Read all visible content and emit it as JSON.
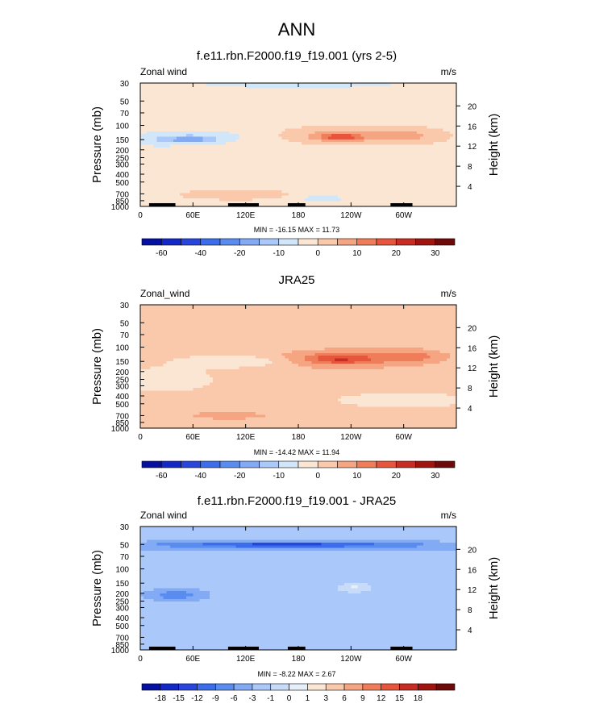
{
  "figure": {
    "title": "ANN"
  },
  "palettes": {
    "main": [
      "#050fa0",
      "#1428c8",
      "#2846dc",
      "#3c6eeb",
      "#5a8cf0",
      "#82aaf5",
      "#aac8fa",
      "#d2e6fa",
      "#fbe6d4",
      "#fac8aa",
      "#f5a582",
      "#f07d5a",
      "#e6553c",
      "#c82d23",
      "#a0140f",
      "#6e0a0a"
    ],
    "diff": [
      "#050fa0",
      "#1428c8",
      "#2846dc",
      "#3c6eeb",
      "#5a8cf0",
      "#82aaf5",
      "#aac8fa",
      "#c8dcfa",
      "#e6f0fa",
      "#fbe6d4",
      "#fac8aa",
      "#f5a582",
      "#f07d5a",
      "#e6553c",
      "#c82d23",
      "#a0140f",
      "#6e0a0a"
    ]
  },
  "chart_data": [
    {
      "type": "heatmap",
      "panel_title": "f.e11.rbn.F2000.f19_f19.001 (yrs 2-5)",
      "left_label": "Zonal wind",
      "right_label": "m/s",
      "ylabel": "Pressure (mb)",
      "ylabel_right": "Height (km)",
      "x_ticks": [
        "0",
        "60E",
        "120E",
        "180",
        "120W",
        "60W"
      ],
      "x_tick_lon": [
        0,
        60,
        120,
        180,
        240,
        300
      ],
      "y_ticks": [
        "30",
        "50",
        "70",
        "100",
        "150",
        "200",
        "250",
        "300",
        "400",
        "500",
        "700",
        "850",
        "1000"
      ],
      "y_tick_p": [
        30,
        50,
        70,
        100,
        150,
        200,
        250,
        300,
        400,
        500,
        700,
        850,
        1000
      ],
      "height_ticks": [
        "20",
        "16",
        "12",
        "8",
        "4"
      ],
      "height_km": [
        20,
        16,
        12,
        8,
        4
      ],
      "stats": "MIN = -16.15  MAX =  11.73",
      "min": -16.15,
      "max": 11.73,
      "palette": "main",
      "levels": [
        -70,
        -60,
        -50,
        -40,
        -30,
        -20,
        -15,
        -10,
        -5,
        0,
        5,
        10,
        15,
        20,
        25,
        30
      ],
      "colorbar_labels": [
        "-60",
        "-40",
        "-20",
        "-10",
        "0",
        "10",
        "20",
        "30"
      ],
      "colorbar_label_idx": [
        1,
        3,
        5,
        7,
        9,
        11,
        13,
        15
      ],
      "background": -2,
      "terrain": [
        [
          10,
          35
        ],
        [
          28,
          40
        ],
        [
          100,
          135
        ],
        [
          168,
          188
        ],
        [
          285,
          310
        ]
      ],
      "blobs": [
        {
          "lon": 180,
          "p": 30,
          "rlon": 200,
          "rlog": 0.26,
          "v": -4
        },
        {
          "lon": 75,
          "p": 140,
          "rlon": 55,
          "rlog": 0.24,
          "v": -6
        },
        {
          "lon": 55,
          "p": 150,
          "rlon": 28,
          "rlog": 0.1,
          "v": -12
        },
        {
          "lon": 15,
          "p": 150,
          "rlon": 30,
          "rlog": 0.25,
          "v": -4
        },
        {
          "lon": 230,
          "p": 130,
          "rlon": 100,
          "rlog": 0.33,
          "v": 3
        },
        {
          "lon": 228,
          "p": 135,
          "rlon": 45,
          "rlog": 0.18,
          "v": 8
        },
        {
          "lon": 228,
          "p": 140,
          "rlon": 22,
          "rlog": 0.08,
          "v": 12
        },
        {
          "lon": 305,
          "p": 135,
          "rlon": 40,
          "rlog": 0.2,
          "v": 7
        },
        {
          "lon": 110,
          "p": 720,
          "rlon": 70,
          "rlog": 0.15,
          "v": 5
        },
        {
          "lon": 80,
          "p": 420,
          "rlon": 50,
          "rlog": 0.08,
          "v": 1
        },
        {
          "lon": 205,
          "p": 800,
          "rlon": 30,
          "rlog": 0.1,
          "v": -6
        }
      ]
    },
    {
      "type": "heatmap",
      "panel_title": "JRA25",
      "left_label": "Zonal_wind",
      "right_label": "m/s",
      "ylabel": "Pressure (mb)",
      "ylabel_right": "Height (km)",
      "x_ticks": [
        "0",
        "60E",
        "120E",
        "180",
        "120W",
        "60W"
      ],
      "x_tick_lon": [
        0,
        60,
        120,
        180,
        240,
        300
      ],
      "y_ticks": [
        "30",
        "50",
        "70",
        "100",
        "150",
        "200",
        "250",
        "300",
        "400",
        "500",
        "700",
        "850",
        "1000"
      ],
      "y_tick_p": [
        30,
        50,
        70,
        100,
        150,
        200,
        250,
        300,
        400,
        500,
        700,
        850,
        1000
      ],
      "height_ticks": [
        "20",
        "16",
        "12",
        "8",
        "4"
      ],
      "height_km": [
        20,
        16,
        12,
        8,
        4
      ],
      "stats": "MIN = -14.42  MAX =  11.94",
      "min": -14.42,
      "max": 11.94,
      "palette": "main",
      "levels": [
        -70,
        -60,
        -50,
        -40,
        -30,
        -20,
        -15,
        -10,
        -5,
        0,
        5,
        10,
        15,
        20,
        25,
        30
      ],
      "colorbar_labels": [
        "-60",
        "-40",
        "-20",
        "-10",
        "0",
        "10",
        "20",
        "30"
      ],
      "colorbar_label_idx": [
        1,
        3,
        5,
        7,
        9,
        11,
        13,
        15
      ],
      "background": 2,
      "terrain": [],
      "blobs": [
        {
          "lon": 30,
          "p": 250,
          "rlon": 55,
          "rlog": 0.35,
          "v": -5
        },
        {
          "lon": 110,
          "p": 150,
          "rlon": 60,
          "rlog": 0.17,
          "v": -8
        },
        {
          "lon": 300,
          "p": 450,
          "rlon": 90,
          "rlog": 0.25,
          "v": -4
        },
        {
          "lon": 230,
          "p": 140,
          "rlon": 95,
          "rlog": 0.3,
          "v": 7
        },
        {
          "lon": 228,
          "p": 140,
          "rlon": 40,
          "rlog": 0.15,
          "v": 12
        },
        {
          "lon": 310,
          "p": 130,
          "rlon": 35,
          "rlog": 0.18,
          "v": 8
        },
        {
          "lon": 100,
          "p": 700,
          "rlon": 50,
          "rlog": 0.12,
          "v": 6
        }
      ]
    },
    {
      "type": "heatmap",
      "panel_title": "f.e11.rbn.F2000.f19_f19.001 - JRA25",
      "left_label": "Zonal wind",
      "right_label": "m/s",
      "ylabel": "Pressure (mb)",
      "ylabel_right": "Height (km)",
      "x_ticks": [
        "0",
        "60E",
        "120E",
        "180",
        "120W",
        "60W"
      ],
      "x_tick_lon": [
        0,
        60,
        120,
        180,
        240,
        300
      ],
      "y_ticks": [
        "30",
        "50",
        "70",
        "100",
        "150",
        "200",
        "250",
        "300",
        "400",
        "500",
        "700",
        "850",
        "1000"
      ],
      "y_tick_p": [
        30,
        50,
        70,
        100,
        150,
        200,
        250,
        300,
        400,
        500,
        700,
        850,
        1000
      ],
      "height_ticks": [
        "20",
        "16",
        "12",
        "8",
        "4"
      ],
      "height_km": [
        20,
        16,
        12,
        8,
        4
      ],
      "stats": "MIN = -8.22  MAX =  2.67",
      "min": -8.22,
      "max": 2.67,
      "palette": "diff",
      "levels": [
        -21,
        -18,
        -15,
        -12,
        -9,
        -6,
        -3,
        -1,
        0,
        1,
        3,
        6,
        9,
        12,
        15,
        18
      ],
      "colorbar_labels": [
        "-18",
        "-15",
        "-12",
        "-9",
        "-6",
        "-3",
        "-1",
        "0",
        "1",
        "3",
        "6",
        "9",
        "12",
        "15",
        "18"
      ],
      "colorbar_label_idx": [
        1,
        2,
        3,
        4,
        5,
        6,
        7,
        8,
        9,
        10,
        11,
        12,
        13,
        14,
        15
      ],
      "background": -2,
      "terrain": [
        [
          10,
          35
        ],
        [
          28,
          40
        ],
        [
          100,
          135
        ],
        [
          168,
          188
        ],
        [
          285,
          310
        ]
      ],
      "blobs": [
        {
          "lon": 180,
          "p": 52,
          "rlon": 200,
          "rlog": 0.12,
          "v": -5
        },
        {
          "lon": 165,
          "p": 50,
          "rlon": 130,
          "rlog": 0.07,
          "v": -7
        },
        {
          "lon": 40,
          "p": 210,
          "rlon": 30,
          "rlog": 0.15,
          "v": -6
        },
        {
          "lon": 240,
          "p": 230,
          "rlon": 40,
          "rlog": 0.3,
          "v": 0.3
        },
        {
          "lon": 245,
          "p": 170,
          "rlon": 22,
          "rlog": 0.15,
          "v": 2
        },
        {
          "lon": 30,
          "p": 100,
          "rlon": 35,
          "rlog": 0.05,
          "v": 1
        },
        {
          "lon": 30,
          "p": 500,
          "rlon": 30,
          "rlog": 0.1,
          "v": 0.5
        },
        {
          "lon": 160,
          "p": 300,
          "rlon": 40,
          "rlog": 0.12,
          "v": -0.5
        },
        {
          "lon": 105,
          "p": 420,
          "rlon": 50,
          "rlog": 0.1,
          "v": -0.5
        }
      ]
    }
  ]
}
